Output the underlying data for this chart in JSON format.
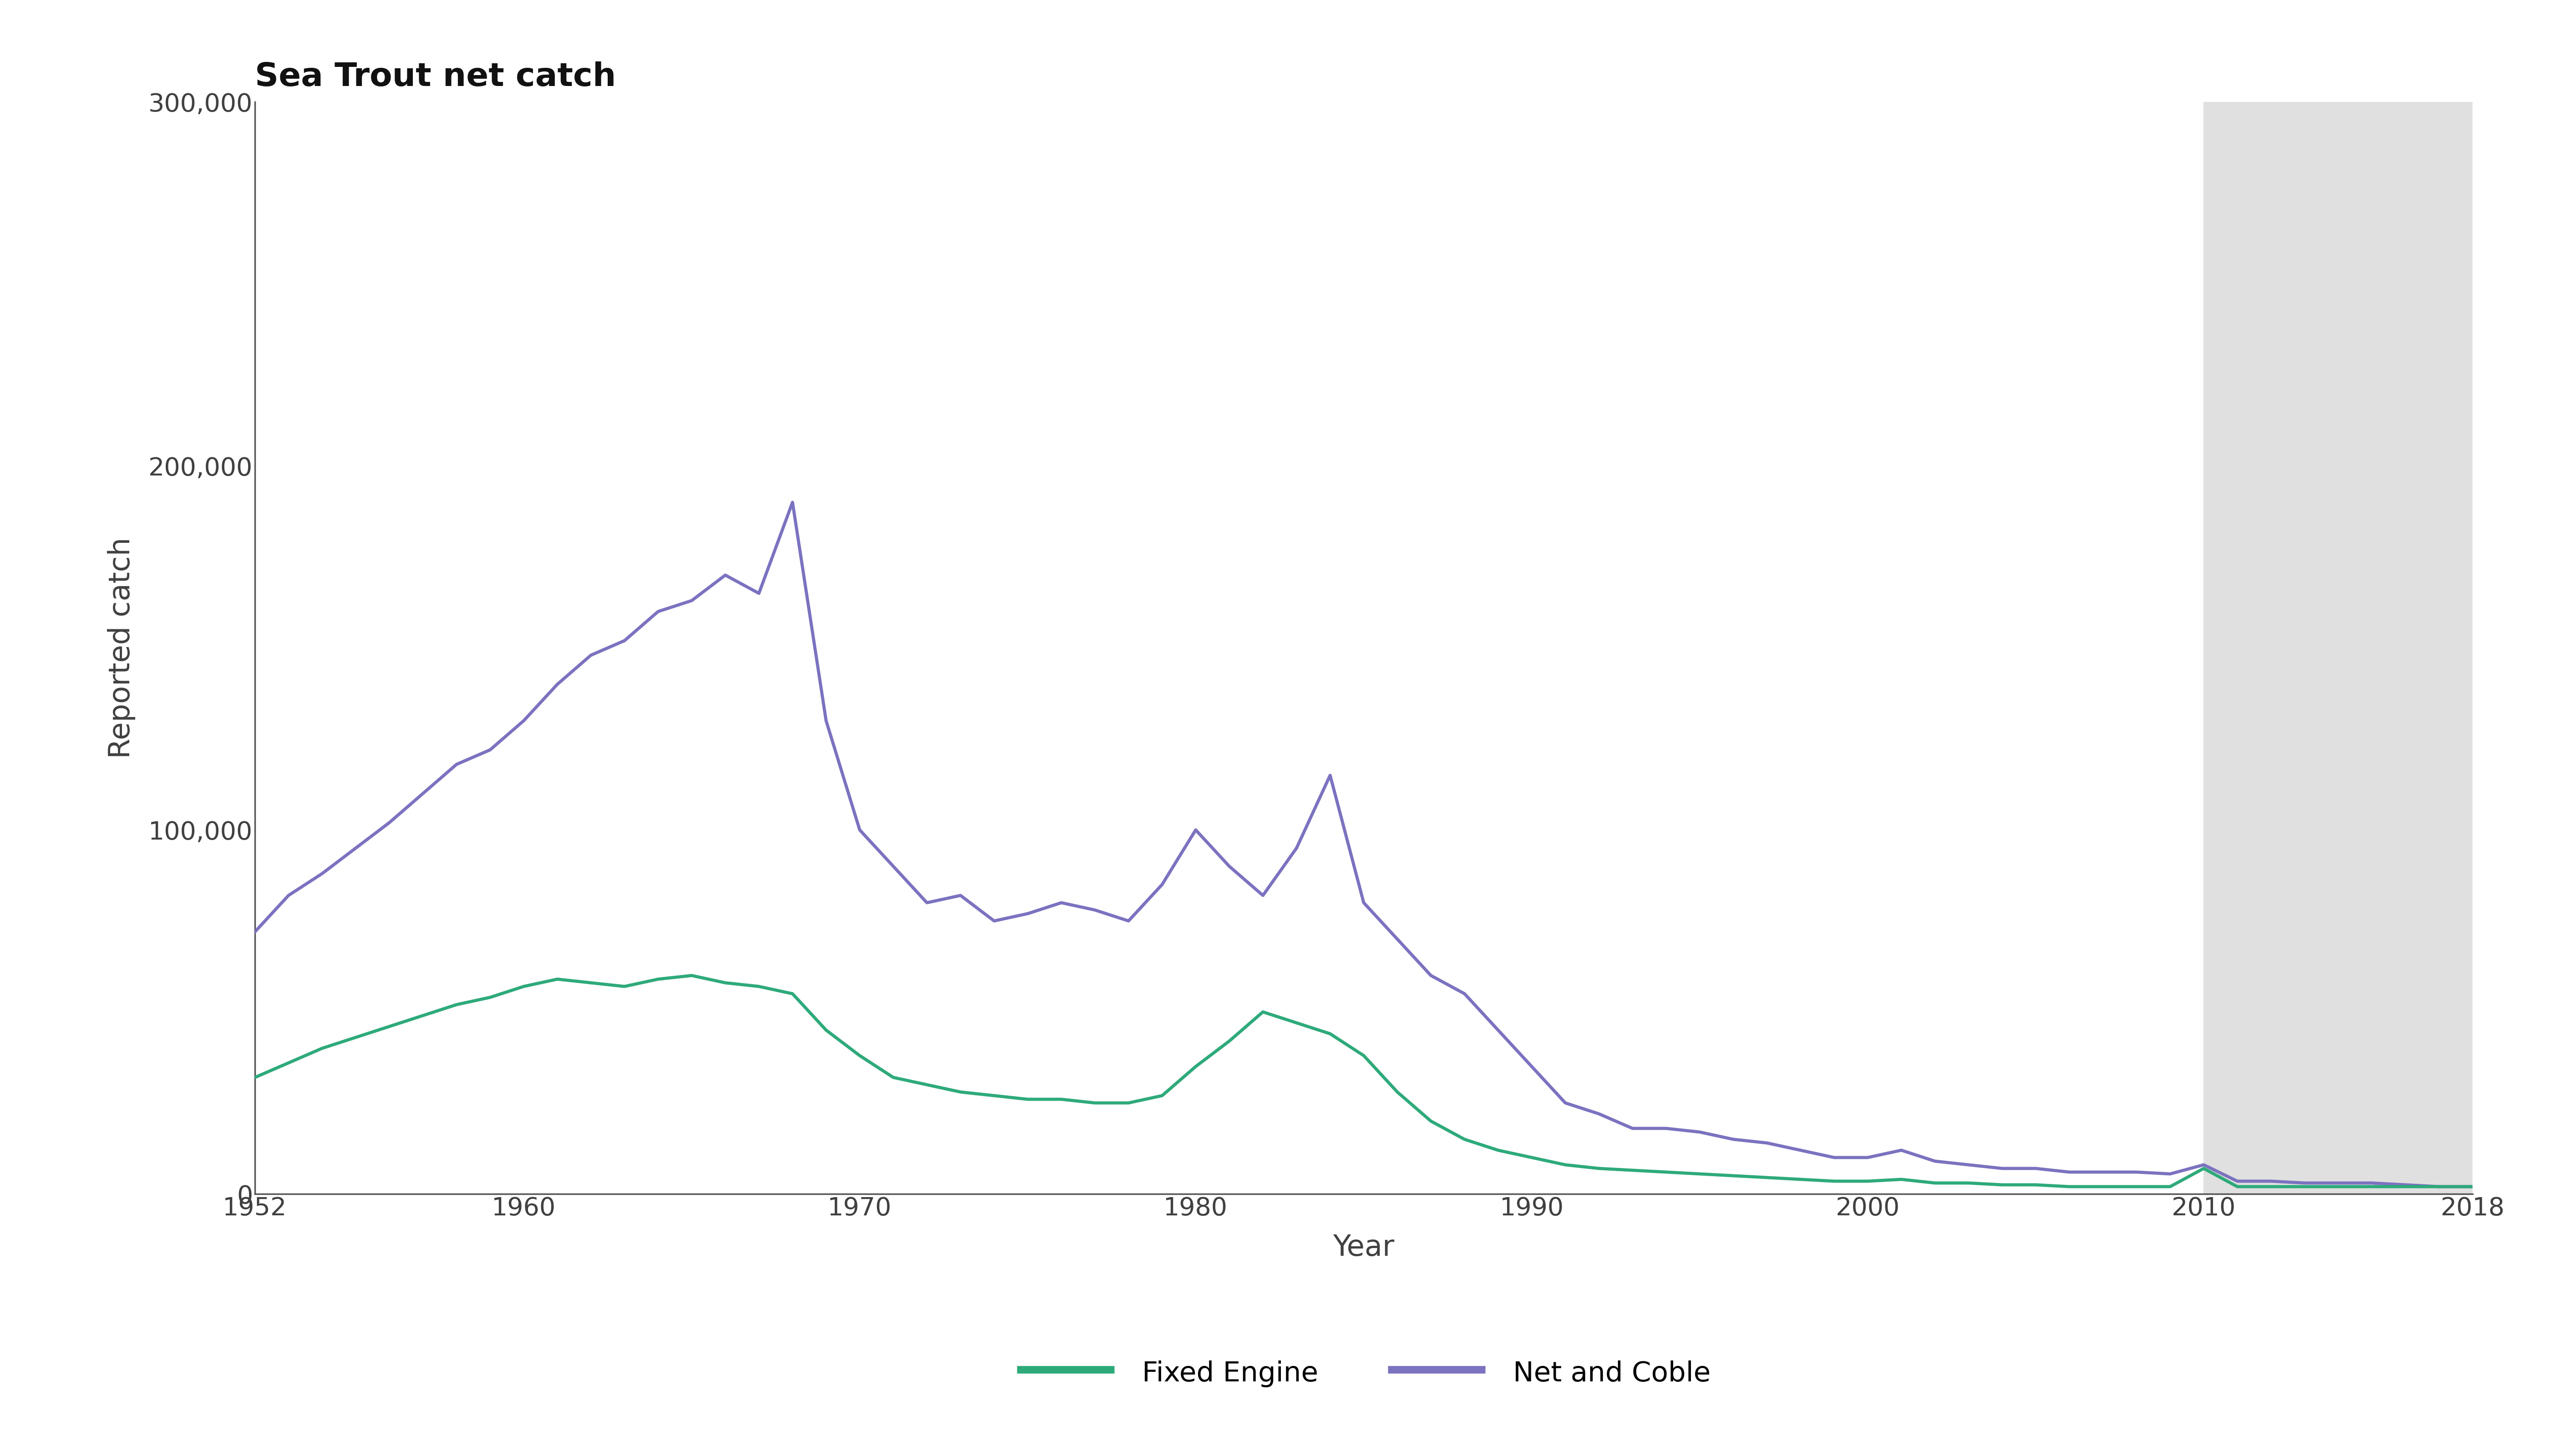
{
  "title": "Sea Trout net catch",
  "xlabel": "Year",
  "ylabel": "Reported catch",
  "ylim": [
    0,
    300000
  ],
  "xlim": [
    1952,
    2018
  ],
  "yticks": [
    0,
    100000,
    200000,
    300000
  ],
  "ytick_labels": [
    "0",
    "100,000",
    "200,000",
    "300,000"
  ],
  "xticks": [
    1952,
    1960,
    1970,
    1980,
    1990,
    2000,
    2010,
    2018
  ],
  "shade_start": 2010,
  "shade_end": 2018,
  "shade_color": "#e0e0e0",
  "background_color": "#ffffff",
  "fixed_engine_color": "#2eaa7a",
  "net_coble_color": "#7b72c0",
  "line_width": 5.0,
  "title_fontsize": 52,
  "axis_label_fontsize": 46,
  "tick_fontsize": 40,
  "legend_fontsize": 44,
  "spine_color": "#555555",
  "tick_color": "#404040",
  "years": [
    1952,
    1953,
    1954,
    1955,
    1956,
    1957,
    1958,
    1959,
    1960,
    1961,
    1962,
    1963,
    1964,
    1965,
    1966,
    1967,
    1968,
    1969,
    1970,
    1971,
    1972,
    1973,
    1974,
    1975,
    1976,
    1977,
    1978,
    1979,
    1980,
    1981,
    1982,
    1983,
    1984,
    1985,
    1986,
    1987,
    1988,
    1989,
    1990,
    1991,
    1992,
    1993,
    1994,
    1995,
    1996,
    1997,
    1998,
    1999,
    2000,
    2001,
    2002,
    2003,
    2004,
    2005,
    2006,
    2007,
    2008,
    2009,
    2010,
    2011,
    2012,
    2013,
    2014,
    2015,
    2016,
    2017,
    2018
  ],
  "fixed_engine": [
    32000,
    36000,
    40000,
    43000,
    46000,
    49000,
    52000,
    54000,
    57000,
    59000,
    58000,
    57000,
    59000,
    60000,
    58000,
    57000,
    55000,
    45000,
    38000,
    32000,
    30000,
    28000,
    27000,
    26000,
    26000,
    25000,
    25000,
    27000,
    35000,
    42000,
    50000,
    47000,
    44000,
    38000,
    28000,
    20000,
    15000,
    12000,
    10000,
    8000,
    7000,
    6500,
    6000,
    5500,
    5000,
    4500,
    4000,
    3500,
    3500,
    4000,
    3000,
    3000,
    2500,
    2500,
    2000,
    2000,
    2000,
    2000,
    7000,
    2000,
    2000,
    2000,
    2000,
    2000,
    2000,
    2000,
    2000
  ],
  "net_coble": [
    72000,
    82000,
    88000,
    95000,
    102000,
    110000,
    118000,
    122000,
    130000,
    140000,
    148000,
    152000,
    160000,
    163000,
    170000,
    165000,
    190000,
    130000,
    100000,
    90000,
    80000,
    82000,
    75000,
    77000,
    80000,
    78000,
    75000,
    85000,
    100000,
    90000,
    82000,
    95000,
    115000,
    80000,
    70000,
    60000,
    55000,
    45000,
    35000,
    25000,
    22000,
    18000,
    18000,
    17000,
    15000,
    14000,
    12000,
    10000,
    10000,
    12000,
    9000,
    8000,
    7000,
    7000,
    6000,
    6000,
    6000,
    5500,
    8000,
    3500,
    3500,
    3000,
    3000,
    3000,
    2500,
    2000,
    2000
  ]
}
